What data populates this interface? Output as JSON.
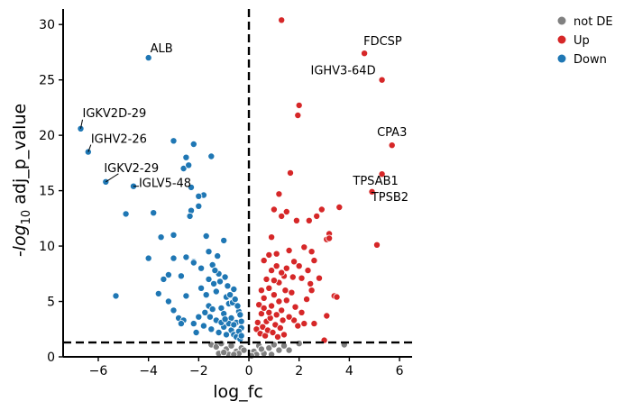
{
  "chart_data": {
    "type": "scatter",
    "title": "",
    "xlabel": "log_fc",
    "ylabel": {
      "prefix": "-log",
      "subscript": "10",
      "suffix": " adj_p_value"
    },
    "xlim": [
      -7.4,
      6.5
    ],
    "ylim": [
      0,
      31.4
    ],
    "xticks": [
      -6,
      -4,
      -2,
      0,
      2,
      4,
      6
    ],
    "yticks": [
      0,
      5,
      10,
      15,
      20,
      25,
      30
    ],
    "grid": false,
    "legend": {
      "position": "top-right",
      "entries": [
        "not DE",
        "Up",
        "Down"
      ]
    },
    "colors": {
      "not DE": "#808080",
      "Up": "#d62728",
      "Down": "#1f77b4"
    },
    "reference_lines": {
      "vertical_x": 0,
      "horizontal_y": 1.3
    },
    "labeled_points": [
      {
        "label": "ALB",
        "x": -4.0,
        "y": 27.0,
        "group": "Down"
      },
      {
        "label": "IGKV2D-29",
        "x": -6.7,
        "y": 20.6,
        "group": "Down"
      },
      {
        "label": "IGHV2-26",
        "x": -6.4,
        "y": 18.5,
        "group": "Down"
      },
      {
        "label": "IGKV2-29",
        "x": -5.7,
        "y": 15.8,
        "group": "Down"
      },
      {
        "label": "IGLV5-48",
        "x": -4.6,
        "y": 15.4,
        "group": "Down"
      },
      {
        "label": "FDCSP",
        "x": 4.6,
        "y": 27.4,
        "group": "Up"
      },
      {
        "label": "IGHV3-64D",
        "x": 5.3,
        "y": 25.0,
        "group": "Up"
      },
      {
        "label": "CPA3",
        "x": 5.7,
        "y": 19.1,
        "group": "Up"
      },
      {
        "label": "TPSAB1",
        "x": 5.3,
        "y": 16.5,
        "group": "Up"
      },
      {
        "label": "TPSB2",
        "x": 4.9,
        "y": 14.9,
        "group": "Up"
      }
    ],
    "series": [
      {
        "name": "Down",
        "points": [
          [
            -3.0,
            19.5
          ],
          [
            -2.2,
            19.2
          ],
          [
            -2.5,
            18.0
          ],
          [
            -1.5,
            18.1
          ],
          [
            -2.6,
            17.0
          ],
          [
            -2.4,
            17.3
          ],
          [
            -2.3,
            15.3
          ],
          [
            -1.8,
            14.6
          ],
          [
            -2.0,
            14.5
          ],
          [
            -2.3,
            13.2
          ],
          [
            -2.35,
            12.7
          ],
          [
            -3.8,
            13.0
          ],
          [
            -4.9,
            12.9
          ],
          [
            -2.0,
            13.6
          ],
          [
            -3.5,
            10.8
          ],
          [
            -3.0,
            11.0
          ],
          [
            -1.7,
            10.9
          ],
          [
            -1.0,
            10.5
          ],
          [
            -4.0,
            8.9
          ],
          [
            -3.0,
            8.9
          ],
          [
            -2.5,
            9.0
          ],
          [
            -2.2,
            8.6
          ],
          [
            -1.6,
            9.5
          ],
          [
            -3.4,
            7.0
          ],
          [
            -3.2,
            7.4
          ],
          [
            -2.7,
            7.3
          ],
          [
            -2.2,
            8.5
          ],
          [
            -1.9,
            8.0
          ],
          [
            -5.3,
            5.5
          ],
          [
            -3.6,
            5.7
          ],
          [
            -3.2,
            5.0
          ],
          [
            -2.5,
            5.5
          ],
          [
            -3.0,
            4.2
          ],
          [
            -2.8,
            3.5
          ],
          [
            -2.6,
            3.3
          ],
          [
            -2.7,
            3.0
          ],
          [
            -2.0,
            3.6
          ],
          [
            -2.2,
            3.0
          ],
          [
            -2.1,
            2.2
          ],
          [
            -1.9,
            6.2
          ],
          [
            -1.7,
            5.6
          ],
          [
            -1.6,
            4.6
          ],
          [
            -1.4,
            6.6
          ],
          [
            -1.3,
            5.9
          ],
          [
            -1.2,
            7.5
          ],
          [
            -1.1,
            4.4
          ],
          [
            -1.0,
            3.9
          ],
          [
            -0.9,
            5.4
          ],
          [
            -0.8,
            4.8
          ],
          [
            -0.7,
            3.5
          ],
          [
            -0.6,
            6.1
          ],
          [
            -0.5,
            3.1
          ],
          [
            -0.4,
            4.1
          ],
          [
            -0.3,
            2.6
          ],
          [
            -1.8,
            2.8
          ],
          [
            -1.5,
            2.5
          ],
          [
            -1.3,
            3.3
          ],
          [
            -1.2,
            2.2
          ],
          [
            -1.0,
            2.7
          ],
          [
            -0.9,
            2.0
          ],
          [
            -0.8,
            3.0
          ],
          [
            -0.7,
            2.4
          ],
          [
            -0.6,
            2.0
          ],
          [
            -0.5,
            1.8
          ],
          [
            -0.4,
            2.3
          ],
          [
            -0.35,
            1.6
          ],
          [
            -0.3,
            1.9
          ],
          [
            -1.6,
            7.0
          ],
          [
            -1.45,
            8.3
          ],
          [
            -1.35,
            7.8
          ],
          [
            -1.25,
            9.1
          ],
          [
            -1.15,
            6.8
          ],
          [
            -0.95,
            7.2
          ],
          [
            -0.85,
            6.4
          ],
          [
            -0.75,
            5.6
          ],
          [
            -0.65,
            4.9
          ],
          [
            -0.55,
            5.2
          ],
          [
            -0.45,
            4.6
          ],
          [
            -0.35,
            3.8
          ],
          [
            -1.75,
            4.0
          ],
          [
            -1.55,
            3.6
          ],
          [
            -1.45,
            4.3
          ],
          [
            -1.1,
            3.1
          ],
          [
            -0.95,
            3.4
          ],
          [
            -0.6,
            2.9
          ],
          [
            -0.3,
            3.2
          ]
        ]
      },
      {
        "name": "Up",
        "points": [
          [
            1.3,
            30.4
          ],
          [
            2.0,
            22.7
          ],
          [
            1.95,
            21.8
          ],
          [
            1.65,
            16.6
          ],
          [
            1.2,
            14.7
          ],
          [
            1.3,
            12.7
          ],
          [
            1.5,
            13.1
          ],
          [
            1.0,
            13.3
          ],
          [
            1.9,
            12.3
          ],
          [
            2.4,
            12.3
          ],
          [
            2.7,
            12.7
          ],
          [
            2.9,
            13.3
          ],
          [
            3.6,
            13.5
          ],
          [
            3.2,
            11.1
          ],
          [
            3.1,
            10.6
          ],
          [
            3.2,
            10.7
          ],
          [
            5.1,
            10.1
          ],
          [
            0.9,
            10.8
          ],
          [
            1.1,
            9.3
          ],
          [
            1.6,
            9.6
          ],
          [
            2.2,
            9.9
          ],
          [
            2.5,
            9.5
          ],
          [
            2.6,
            8.7
          ],
          [
            2.0,
            8.2
          ],
          [
            1.8,
            8.6
          ],
          [
            1.5,
            8.0
          ],
          [
            0.8,
            9.2
          ],
          [
            0.6,
            8.7
          ],
          [
            2.1,
            7.1
          ],
          [
            2.8,
            7.1
          ],
          [
            2.45,
            6.6
          ],
          [
            2.5,
            6.0
          ],
          [
            3.4,
            5.5
          ],
          [
            3.5,
            5.4
          ],
          [
            3.1,
            3.7
          ],
          [
            3.0,
            1.5
          ],
          [
            2.6,
            3.0
          ],
          [
            2.2,
            3.0
          ],
          [
            1.8,
            3.3
          ],
          [
            1.4,
            2.0
          ],
          [
            0.4,
            4.7
          ],
          [
            0.5,
            3.9
          ],
          [
            0.6,
            5.3
          ],
          [
            0.7,
            3.2
          ],
          [
            0.8,
            6.2
          ],
          [
            0.9,
            4.6
          ],
          [
            1.0,
            5.6
          ],
          [
            1.1,
            3.8
          ],
          [
            1.2,
            6.7
          ],
          [
            1.3,
            4.2
          ],
          [
            1.4,
            7.3
          ],
          [
            1.5,
            5.1
          ],
          [
            1.6,
            3.6
          ],
          [
            1.7,
            5.8
          ],
          [
            0.3,
            2.5
          ],
          [
            0.35,
            3.1
          ],
          [
            0.45,
            2.1
          ],
          [
            0.55,
            2.7
          ],
          [
            0.65,
            1.9
          ],
          [
            0.75,
            2.4
          ],
          [
            0.85,
            3.5
          ],
          [
            0.95,
            2.2
          ],
          [
            1.05,
            2.9
          ],
          [
            1.15,
            1.8
          ],
          [
            1.25,
            2.6
          ],
          [
            1.35,
            3.3
          ],
          [
            0.5,
            6.0
          ],
          [
            0.7,
            7.0
          ],
          [
            0.9,
            7.8
          ],
          [
            1.1,
            8.2
          ],
          [
            1.3,
            7.6
          ],
          [
            1.0,
            6.9
          ],
          [
            0.8,
            4.0
          ],
          [
            0.6,
            4.4
          ],
          [
            1.2,
            5.0
          ],
          [
            1.45,
            6.0
          ],
          [
            1.75,
            7.2
          ],
          [
            1.85,
            4.5
          ],
          [
            2.3,
            5.2
          ],
          [
            2.1,
            4.0
          ],
          [
            1.95,
            2.8
          ],
          [
            2.35,
            7.8
          ]
        ]
      },
      {
        "name": "not DE",
        "points": [
          [
            -1.5,
            1.1
          ],
          [
            -1.3,
            0.9
          ],
          [
            -1.1,
            1.2
          ],
          [
            -0.9,
            0.7
          ],
          [
            -0.7,
            1.0
          ],
          [
            -0.5,
            0.5
          ],
          [
            -0.3,
            0.8
          ],
          [
            -1.2,
            0.3
          ],
          [
            -0.8,
            0.2
          ],
          [
            -0.4,
            0.3
          ],
          [
            -0.2,
            0.6
          ],
          [
            0.2,
            0.5
          ],
          [
            0.4,
            1.0
          ],
          [
            0.6,
            0.3
          ],
          [
            0.8,
            0.8
          ],
          [
            1.0,
            1.1
          ],
          [
            1.2,
            0.6
          ],
          [
            0.3,
            0.2
          ],
          [
            0.9,
            0.2
          ],
          [
            1.4,
            1.0
          ],
          [
            1.6,
            0.6
          ],
          [
            2.0,
            1.2
          ],
          [
            3.8,
            1.1
          ],
          [
            -1.0,
            0.4
          ],
          [
            0.5,
            0.7
          ],
          [
            -0.6,
            0.2
          ],
          [
            0.1,
            0.1
          ]
        ]
      }
    ]
  }
}
